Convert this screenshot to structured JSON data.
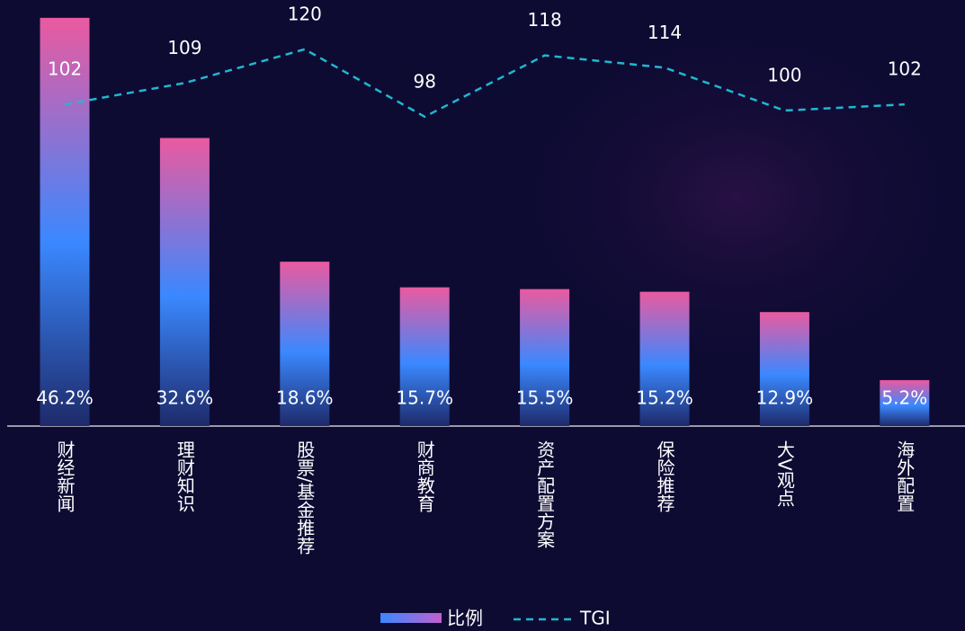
{
  "chart_data": {
    "type": "bar",
    "categories": [
      "财经新闻",
      "理财知识",
      "股票/基金推荐",
      "财商教育",
      "资产配置方案",
      "保险推荐",
      "大V观点",
      "海外配置"
    ],
    "series": [
      {
        "name": "比例",
        "type": "bar",
        "color": "#3a88ff",
        "values": [
          46.2,
          32.6,
          18.6,
          15.7,
          15.5,
          15.2,
          12.9,
          5.2
        ],
        "value_labels": [
          "46.2%",
          "32.6%",
          "18.6%",
          "15.7%",
          "15.5%",
          "15.2%",
          "12.9%",
          "5.2%"
        ]
      },
      {
        "name": "TGI",
        "type": "line",
        "axis": "y2",
        "color": "#1fb8d0",
        "values": [
          102,
          109,
          120,
          98,
          118,
          114,
          100,
          102
        ]
      }
    ]
  }
}
